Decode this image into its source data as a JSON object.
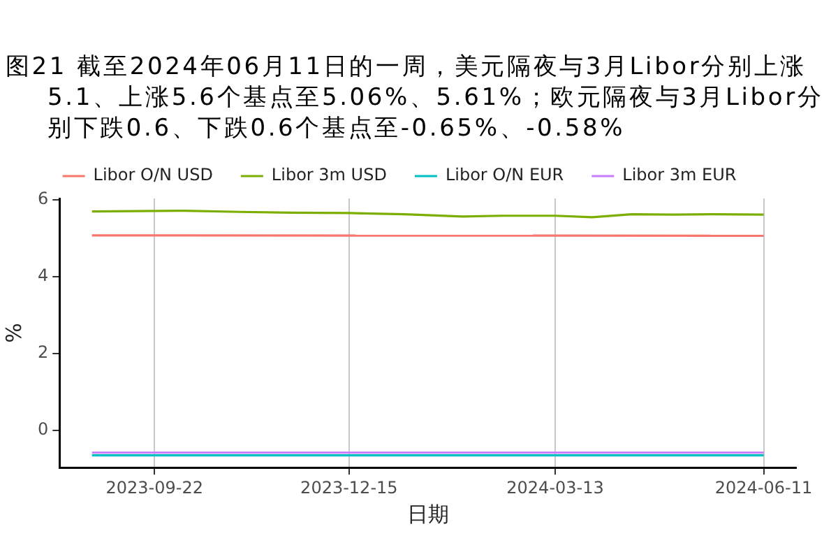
{
  "chart_data": {
    "type": "line",
    "title": "图21  截至2024年06月11日的一周，美元隔夜与3月Libor分别上涨5.1、上涨5.6个基点至5.06%、5.61%；欧元隔夜与3月Libor分别下跌0.6、下跌0.6个基点至-0.65%、-0.58%",
    "xlabel": "日期",
    "ylabel": "%",
    "series": [
      {
        "name": "Libor O/N USD",
        "color": "#f8766d",
        "x": [
          "2023-08-26",
          "2024-06-11"
        ],
        "values": [
          5.07,
          5.06
        ]
      },
      {
        "name": "Libor 3m USD",
        "color": "#7cae00",
        "x": [
          "2023-08-26",
          "2023-09-14",
          "2023-10-05",
          "2023-10-29",
          "2023-11-20",
          "2023-12-15",
          "2024-01-08",
          "2024-02-02",
          "2024-02-19",
          "2024-03-13",
          "2024-03-29",
          "2024-04-15",
          "2024-05-03",
          "2024-05-21",
          "2024-06-11"
        ],
        "values": [
          5.69,
          5.7,
          5.71,
          5.68,
          5.66,
          5.65,
          5.62,
          5.56,
          5.58,
          5.58,
          5.54,
          5.62,
          5.61,
          5.62,
          5.61
        ]
      },
      {
        "name": "Libor O/N EUR",
        "color": "#00bfc4",
        "x": [
          "2023-08-26",
          "2024-06-11"
        ],
        "values": [
          -0.65,
          -0.65
        ]
      },
      {
        "name": "Libor 3m EUR",
        "color": "#c77cff",
        "x": [
          "2023-08-26",
          "2024-06-11"
        ],
        "values": [
          -0.58,
          -0.58
        ]
      }
    ],
    "xlim": [
      "2023-08-12",
      "2024-06-25"
    ],
    "xticks": [
      "2023-09-22",
      "2023-12-15",
      "2024-03-13",
      "2024-06-11"
    ],
    "ylim": [
      -0.97,
      6.03
    ],
    "yticks": [
      0,
      2,
      4,
      6
    ],
    "grid": "x",
    "legend": "top"
  }
}
